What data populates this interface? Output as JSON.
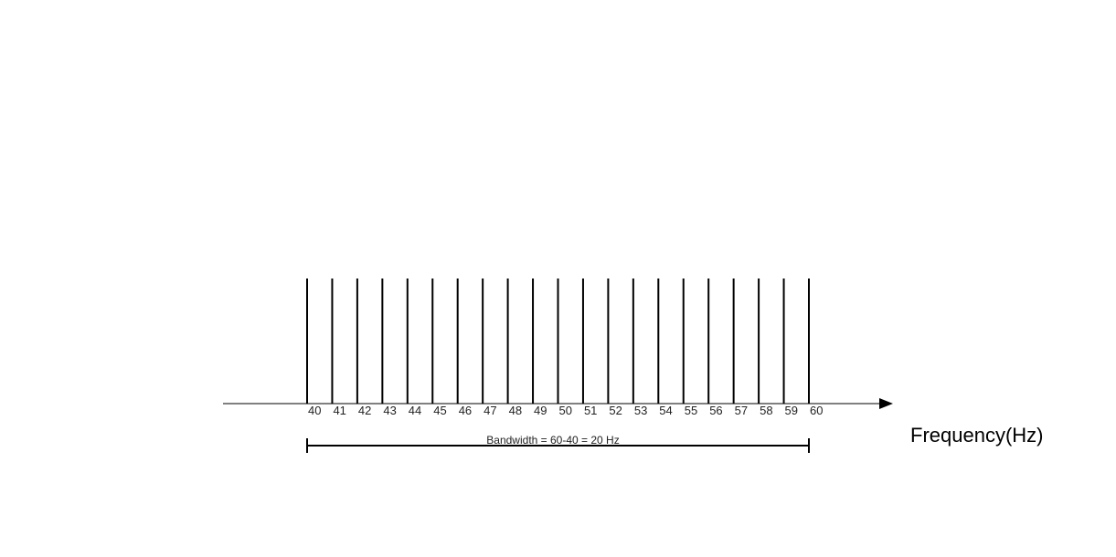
{
  "diagram": {
    "frequencies": [
      40,
      41,
      42,
      43,
      44,
      45,
      46,
      47,
      48,
      49,
      50,
      51,
      52,
      53,
      54,
      55,
      56,
      57,
      58,
      59,
      60
    ],
    "bandwidth_label": "Bandwidth = 60-40 = 20 Hz",
    "axis_label": "Frequency(Hz)",
    "bandwidth_range": [
      40,
      60
    ],
    "line_color": "#000000"
  }
}
